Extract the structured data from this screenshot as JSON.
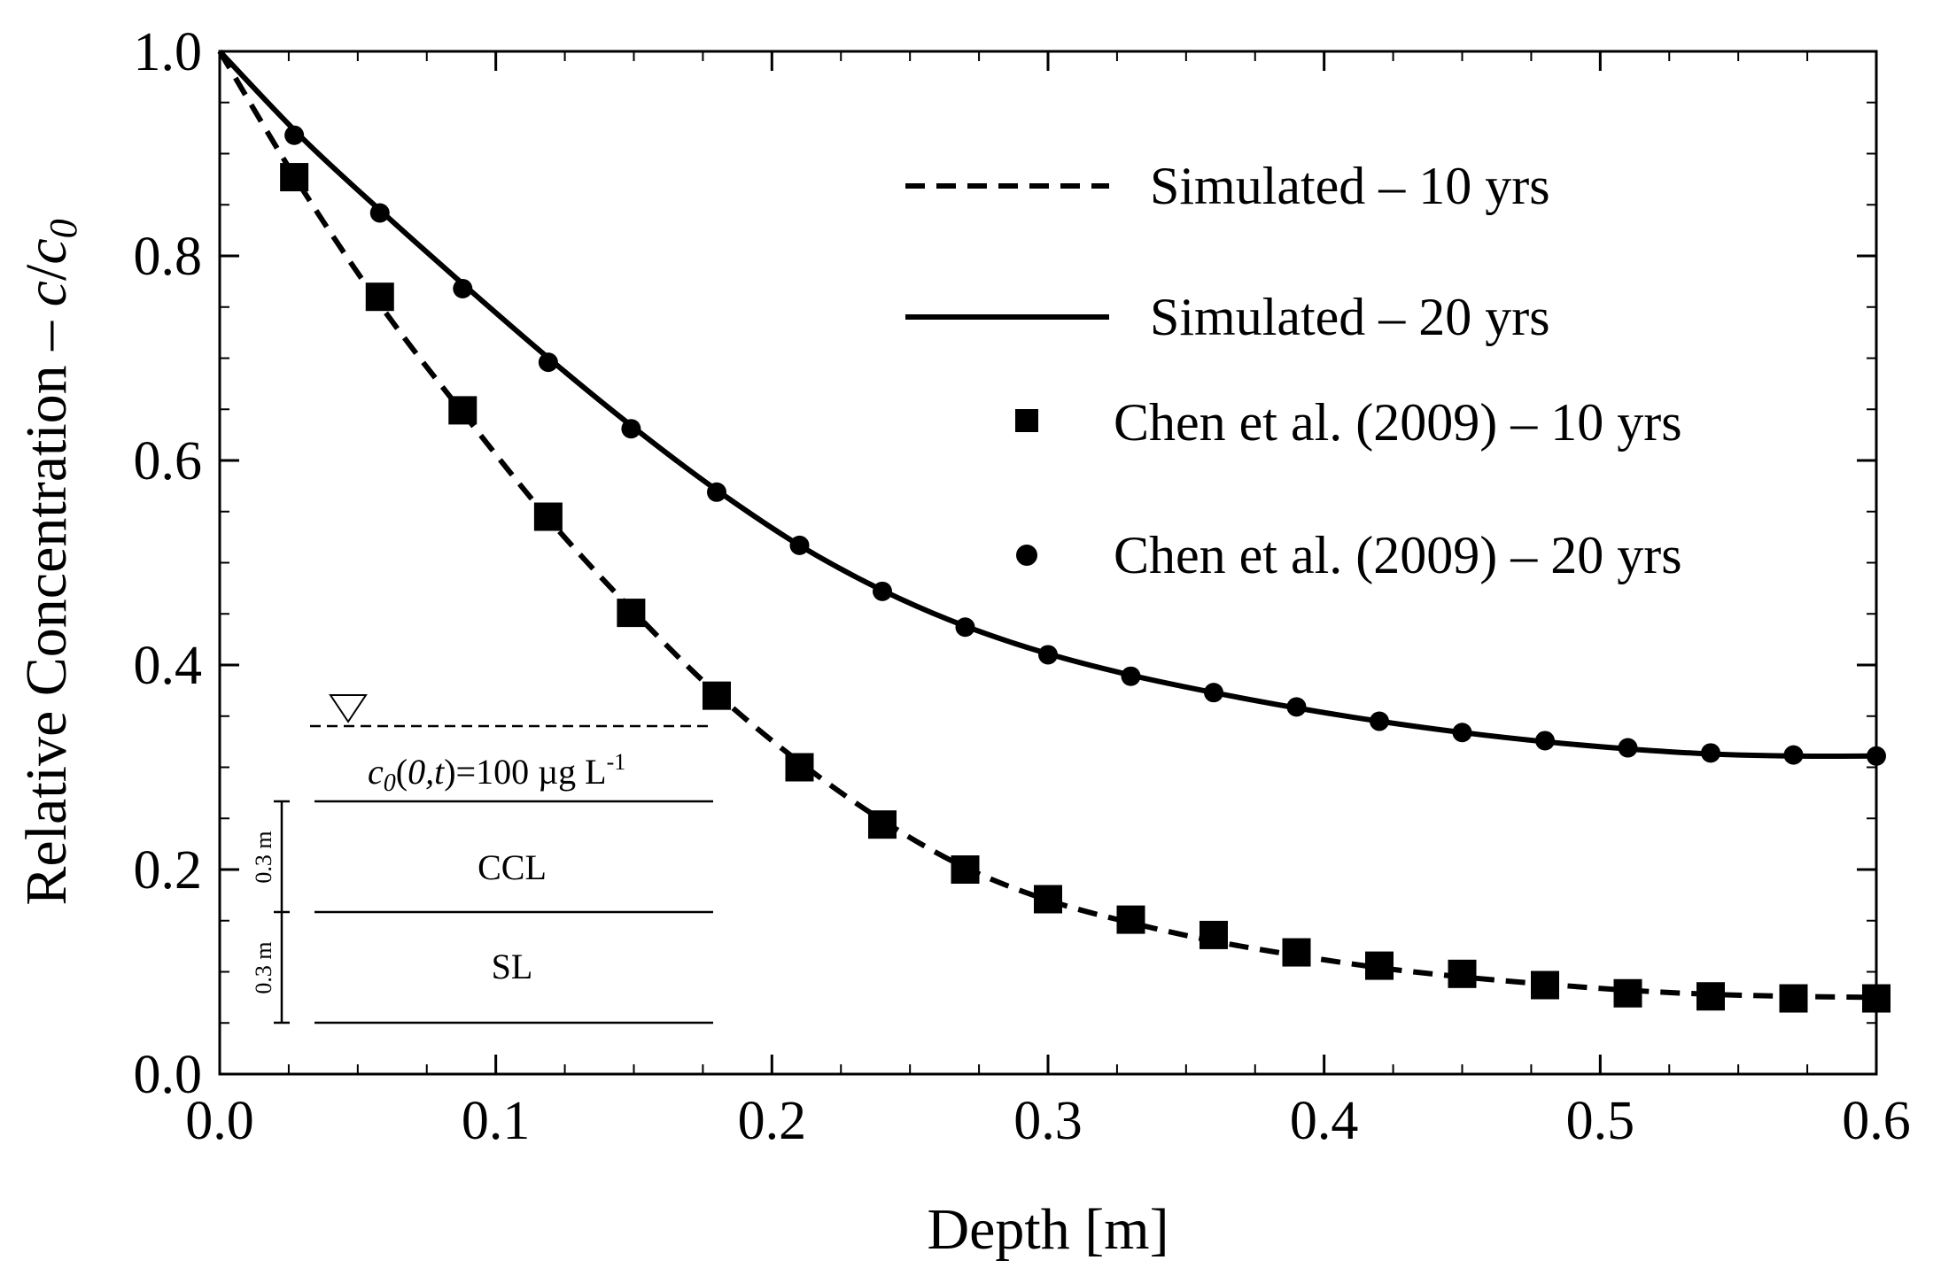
{
  "chart_data": {
    "type": "line",
    "title": "",
    "xlabel": "Depth [m]",
    "ylabel_main": "Relative Concentration – ",
    "ylabel_c": "c",
    "ylabel_slash": "/",
    "ylabel_c0_base": "c",
    "ylabel_c0_sub": "0",
    "xlim": [
      0.0,
      0.6
    ],
    "ylim": [
      0.0,
      1.0
    ],
    "x_ticks": [
      0.0,
      0.1,
      0.2,
      0.3,
      0.4,
      0.5,
      0.6
    ],
    "x_tick_labels": [
      "0.0",
      "0.1",
      "0.2",
      "0.3",
      "0.4",
      "0.5",
      "0.6"
    ],
    "y_ticks": [
      0.0,
      0.2,
      0.4,
      0.6,
      0.8,
      1.0
    ],
    "y_tick_labels": [
      "0.0",
      "0.2",
      "0.4",
      "0.6",
      "0.8",
      "1.0"
    ],
    "minor_x_step": 0.025,
    "minor_y_step": 0.05,
    "legend_position": "top-right",
    "series": [
      {
        "name": "Simulated – 10 yrs",
        "style": "dashed-line",
        "x": [
          0.0,
          0.03,
          0.06,
          0.09,
          0.12,
          0.15,
          0.18,
          0.21,
          0.24,
          0.27,
          0.3,
          0.33,
          0.36,
          0.39,
          0.42,
          0.45,
          0.48,
          0.51,
          0.54,
          0.57,
          0.6
        ],
        "y": [
          1.0,
          0.865,
          0.745,
          0.64,
          0.54,
          0.452,
          0.372,
          0.305,
          0.248,
          0.202,
          0.17,
          0.148,
          0.13,
          0.116,
          0.104,
          0.095,
          0.088,
          0.082,
          0.078,
          0.076,
          0.075
        ]
      },
      {
        "name": "Simulated – 20 yrs",
        "style": "solid-line",
        "x": [
          0.0,
          0.03,
          0.06,
          0.09,
          0.12,
          0.15,
          0.18,
          0.21,
          0.24,
          0.27,
          0.3,
          0.33,
          0.36,
          0.39,
          0.42,
          0.45,
          0.48,
          0.51,
          0.54,
          0.57,
          0.6
        ],
        "y": [
          1.0,
          0.915,
          0.84,
          0.768,
          0.698,
          0.632,
          0.571,
          0.517,
          0.473,
          0.438,
          0.411,
          0.39,
          0.373,
          0.358,
          0.345,
          0.334,
          0.325,
          0.318,
          0.313,
          0.311,
          0.311
        ]
      },
      {
        "name": "Chen et al. (2009) – 10 yrs",
        "style": "square-marker",
        "x": [
          0.027,
          0.058,
          0.088,
          0.119,
          0.149,
          0.18,
          0.21,
          0.24,
          0.27,
          0.3,
          0.33,
          0.36,
          0.39,
          0.42,
          0.45,
          0.48,
          0.51,
          0.54,
          0.57,
          0.6
        ],
        "y": [
          0.877,
          0.76,
          0.649,
          0.545,
          0.451,
          0.37,
          0.3,
          0.244,
          0.2,
          0.171,
          0.151,
          0.136,
          0.119,
          0.106,
          0.098,
          0.087,
          0.079,
          0.076,
          0.074,
          0.074
        ]
      },
      {
        "name": "Chen et al. (2009) – 20 yrs",
        "style": "circle-marker",
        "x": [
          0.027,
          0.058,
          0.088,
          0.119,
          0.149,
          0.18,
          0.21,
          0.24,
          0.27,
          0.3,
          0.33,
          0.36,
          0.39,
          0.42,
          0.45,
          0.48,
          0.51,
          0.54,
          0.57,
          0.6
        ],
        "y": [
          0.918,
          0.842,
          0.768,
          0.696,
          0.631,
          0.569,
          0.517,
          0.472,
          0.437,
          0.41,
          0.389,
          0.373,
          0.359,
          0.345,
          0.334,
          0.326,
          0.319,
          0.314,
          0.312,
          0.311
        ]
      }
    ],
    "inset": {
      "source_c": "c",
      "source_sub": "0",
      "source_args_open": "(",
      "source_args": "0,t",
      "source_args_close": ")",
      "source_value": "=100 µg L",
      "source_exp": "-1",
      "layer1": "CCL",
      "layer2": "SL",
      "thickness1": "0.3 m",
      "thickness2": "0.3 m"
    }
  }
}
